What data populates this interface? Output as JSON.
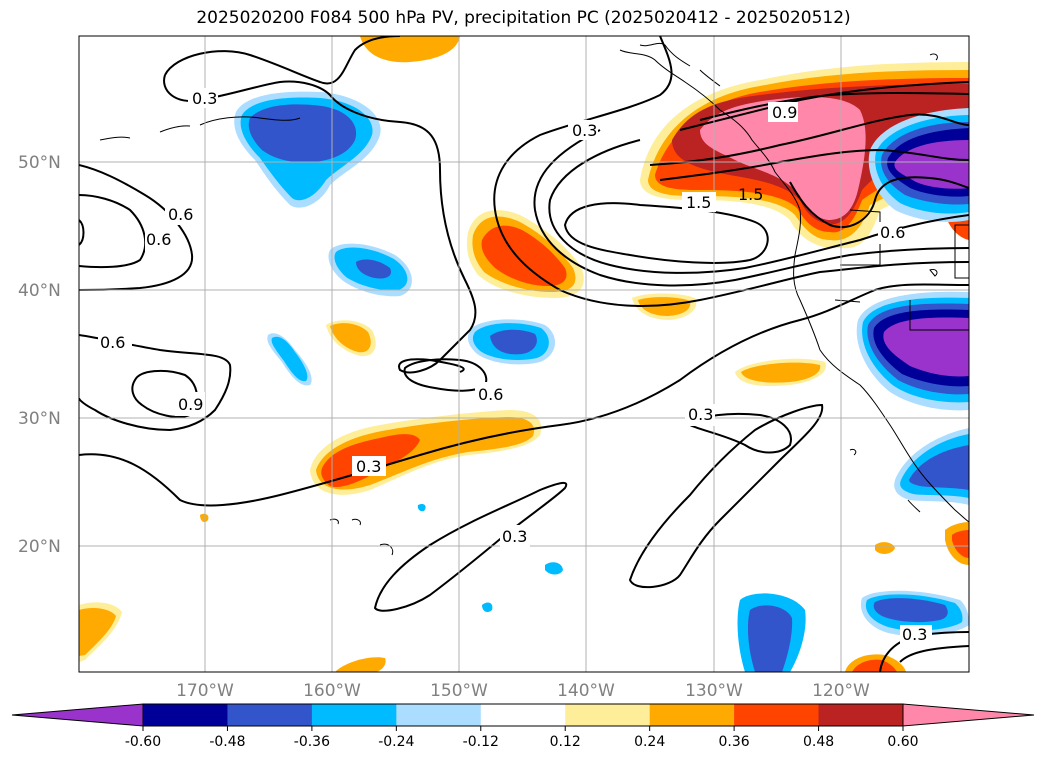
{
  "title": "2025020200 F084 500 hPa PV, precipitation PC (2025020412 - 2025020512)",
  "lat_labels": [
    "50°N",
    "40°N",
    "30°N",
    "20°N"
  ],
  "lon_labels": [
    "170°W",
    "160°W",
    "150°W",
    "140°W",
    "130°W",
    "120°W"
  ],
  "contour_labels": [
    "0.3",
    "0.3",
    "0.9",
    "1.5",
    "1.5",
    "0.6",
    "0.6",
    "0.6",
    "0.9",
    "0.6",
    "0.6",
    "0.3",
    "0.3",
    "0.3",
    "0.3"
  ],
  "colorbar": {
    "colors": [
      "#9933cc",
      "#000099",
      "#3355cc",
      "#00bbff",
      "#aaddff",
      "#ffffff",
      "#ffee99",
      "#ffaa00",
      "#ff4400",
      "#bb2222",
      "#ff88aa"
    ],
    "tick_labels": [
      "-0.60",
      "-0.48",
      "-0.36",
      "-0.24",
      "-0.12",
      "0.12",
      "0.24",
      "0.36",
      "0.48",
      "0.60"
    ]
  }
}
